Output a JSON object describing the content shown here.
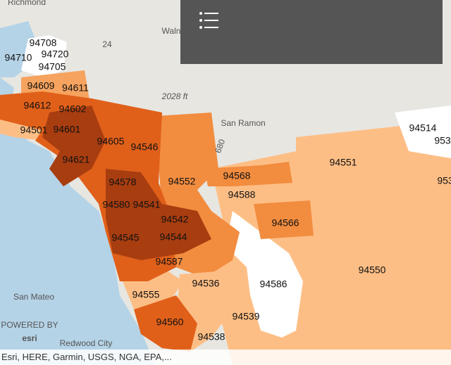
{
  "zip_labels": [
    "94708",
    "94720",
    "94710",
    "94705",
    "94609",
    "94611",
    "94612",
    "94602",
    "94501",
    "94601",
    "94605",
    "94546",
    "94621",
    "94578",
    "94552",
    "94568",
    "94588",
    "94551",
    "94514",
    "953",
    "953",
    "94580",
    "94541",
    "94542",
    "94566",
    "94545",
    "94544",
    "94587",
    "94550",
    "94536",
    "94586",
    "94555",
    "94539",
    "94560",
    "94538"
  ],
  "place_labels": [
    "Richmond",
    "Waln",
    "24",
    "2028 ft",
    "San Ramon",
    "680",
    "San Mateo",
    "Redwood City",
    "POWERED BY",
    "esri"
  ],
  "attribution": "Esri, HERE, Garmin, USGS, NGA, EPA,..."
}
